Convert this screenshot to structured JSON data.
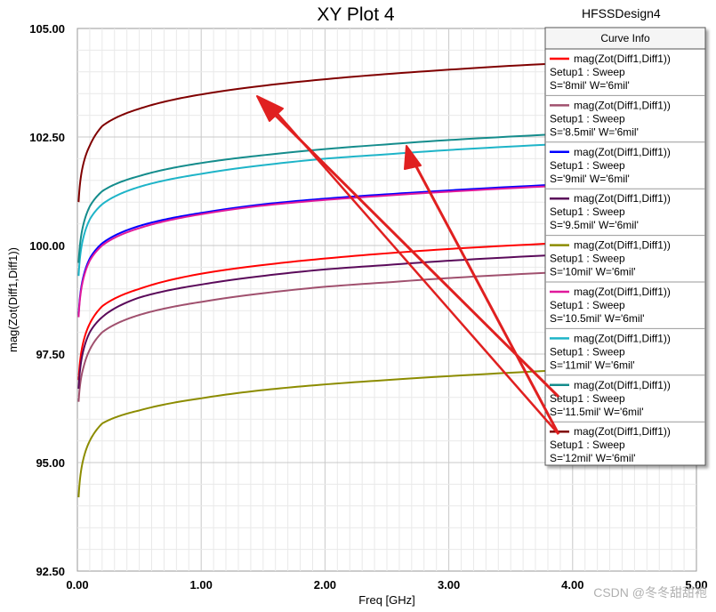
{
  "header": {
    "title": "XY Plot 4",
    "design": "HFSSDesign4"
  },
  "legend": {
    "title": "Curve Info"
  },
  "watermark": "CSDN @冬冬甜甜袍",
  "chart_data": {
    "type": "line",
    "title": "XY Plot 4",
    "xlabel": "Freq [GHz]",
    "ylabel": "mag(Zot(Diff1,Diff1))",
    "xlim": [
      0,
      5
    ],
    "ylim": [
      92.5,
      105
    ],
    "xticks": [
      "0.00",
      "1.00",
      "2.00",
      "3.00",
      "4.00",
      "5.00"
    ],
    "yticks": [
      "92.50",
      "95.00",
      "97.50",
      "100.00",
      "102.50",
      "105.00"
    ],
    "grid": true,
    "legend_position": "top-right",
    "x": [
      0.01,
      0.05,
      0.1,
      0.2,
      0.5,
      1.0,
      1.5,
      2.0,
      2.5,
      3.0,
      3.5,
      4.0,
      5.0
    ],
    "series": [
      {
        "name": "mag(Zot(Diff1,Diff1))",
        "setup": "Setup1 : Sweep",
        "variation": "S='8mil' W='6mil'",
        "color": "#ff0000",
        "values": [
          96.9,
          97.8,
          98.2,
          98.6,
          99.0,
          99.35,
          99.55,
          99.7,
          99.82,
          99.92,
          100.0,
          100.07,
          100.17
        ]
      },
      {
        "name": "mag(Zot(Diff1,Diff1))",
        "setup": "Setup1 : Sweep",
        "variation": "S='8.5mil' W='6mil'",
        "color": "#a0506e",
        "values": [
          96.4,
          97.2,
          97.6,
          98.0,
          98.4,
          98.7,
          98.9,
          99.05,
          99.15,
          99.25,
          99.33,
          99.4,
          99.5
        ]
      },
      {
        "name": "mag(Zot(Diff1,Diff1))",
        "setup": "Setup1 : Sweep",
        "variation": "S='9mil' W='6mil'",
        "color": "#0000ff",
        "values": [
          98.4,
          99.3,
          99.7,
          100.05,
          100.45,
          100.75,
          100.95,
          101.08,
          101.18,
          101.27,
          101.35,
          101.42,
          101.52
        ]
      },
      {
        "name": "mag(Zot(Diff1,Diff1))",
        "setup": "Setup1 : Sweep",
        "variation": "S='9.5mil' W='6mil'",
        "color": "#5a0a5a",
        "values": [
          96.7,
          97.6,
          98.0,
          98.35,
          98.8,
          99.1,
          99.3,
          99.45,
          99.55,
          99.65,
          99.73,
          99.8,
          99.9
        ]
      },
      {
        "name": "mag(Zot(Diff1,Diff1))",
        "setup": "Setup1 : Sweep",
        "variation": "S='10mil' W='6mil'",
        "color": "#8c8c00",
        "values": [
          94.2,
          95.1,
          95.5,
          95.9,
          96.2,
          96.48,
          96.67,
          96.8,
          96.9,
          96.99,
          97.07,
          97.14,
          97.25
        ]
      },
      {
        "name": "mag(Zot(Diff1,Diff1))",
        "setup": "Setup1 : Sweep",
        "variation": "S='10.5mil' W='6mil'",
        "color": "#e0199b",
        "values": [
          98.35,
          99.25,
          99.65,
          100.0,
          100.4,
          100.72,
          100.92,
          101.05,
          101.15,
          101.24,
          101.32,
          101.39,
          101.49
        ]
      },
      {
        "name": "mag(Zot(Diff1,Diff1))",
        "setup": "Setup1 : Sweep",
        "variation": "S='11mil' W='6mil'",
        "color": "#1eb4c8",
        "values": [
          99.3,
          100.2,
          100.6,
          100.95,
          101.35,
          101.65,
          101.85,
          102.0,
          102.1,
          102.2,
          102.28,
          102.35,
          102.45
        ]
      },
      {
        "name": "mag(Zot(Diff1,Diff1))",
        "setup": "Setup1 : Sweep",
        "variation": "S='11.5mil' W='6mil'",
        "color": "#148c8c",
        "values": [
          99.6,
          100.5,
          100.9,
          101.25,
          101.6,
          101.9,
          102.08,
          102.22,
          102.33,
          102.43,
          102.51,
          102.58,
          102.68
        ]
      },
      {
        "name": "mag(Zot(Diff1,Diff1))",
        "setup": "Setup1 : Sweep",
        "variation": "S='12mil' W='6mil'",
        "color": "#800000",
        "values": [
          101.0,
          101.9,
          102.3,
          102.75,
          103.15,
          103.48,
          103.68,
          103.83,
          103.95,
          104.05,
          104.14,
          104.21,
          104.32
        ]
      }
    ]
  }
}
